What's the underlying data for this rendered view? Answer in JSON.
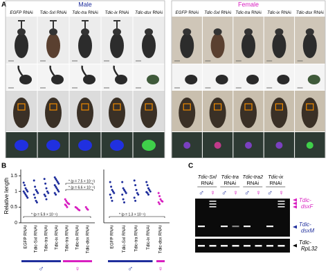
{
  "panel_a": {
    "label": "A",
    "male": {
      "title": "Male",
      "color": "#1f2e9c",
      "columns": [
        {
          "gene": "EGFP",
          "suffix": "RNAi"
        },
        {
          "gene": "Tdic-Sxl",
          "suffix": "RNAi"
        },
        {
          "gene": "Tdic-tra",
          "suffix": "RNAi"
        },
        {
          "gene": "Tdic-ix",
          "suffix": "RNAi"
        },
        {
          "gene": "Tdic-dsx",
          "suffix": "RNAi"
        }
      ]
    },
    "female": {
      "title": "Female",
      "color": "#d81fc0",
      "columns": [
        {
          "gene": "EGFP",
          "suffix": "RNAi"
        },
        {
          "gene": "Tdic-Sxl",
          "suffix": "RNAi"
        },
        {
          "gene": "Tdic-tra",
          "suffix": "RNAi"
        },
        {
          "gene": "Tdic-ix",
          "suffix": "RNAi"
        },
        {
          "gene": "Tdic-dsx",
          "suffix": "RNAi"
        }
      ]
    }
  },
  "panel_b": {
    "label": "B"
  },
  "chart_data": [
    {
      "type": "strip",
      "y_label": "Relative length",
      "ylim": [
        0,
        1.7
      ],
      "yticks": [
        0,
        0.5,
        1,
        1.5
      ],
      "groups": [
        {
          "label": "♂",
          "color": "#1f2e9c",
          "categories": [
            "EGFP RNAi",
            "Tdic-Sxl RNAi",
            "Tdic-tra RNAi",
            "Tdic-ix RNAi"
          ],
          "values": [
            [
              1.28,
              1.2,
              1.1,
              1.05,
              1.0,
              1.0,
              0.95,
              0.9,
              0.85,
              0.8
            ],
            [
              1.35,
              1.15,
              1.05,
              1.0,
              0.95,
              0.9,
              0.8,
              0.7,
              0.65
            ],
            [
              1.4,
              1.25,
              1.1,
              1.0,
              0.95,
              0.9,
              0.85,
              0.75
            ],
            [
              1.45,
              1.4,
              1.35,
              1.3,
              1.25,
              1.2,
              1.15,
              1.1,
              1.05,
              1.0,
              0.95,
              0.9
            ]
          ]
        },
        {
          "label": "♀",
          "color": "#d81fc0",
          "categories": [
            "Tdic-tra RNAi",
            "Tdic-ix RNAi",
            "Tdic-dsx RNAi"
          ],
          "values": [
            [
              0.75,
              0.7,
              0.65,
              0.62,
              0.6,
              0.58,
              0.55,
              0.5
            ],
            [
              0.5,
              0.48,
              0.45,
              0.42,
              0.4
            ],
            [
              0.5,
              0.45,
              0.42
            ]
          ]
        }
      ],
      "annotations": [
        "* (p = 7.5 × 10⁻⁵)",
        "* (p = 6.6 × 10⁻⁴)",
        "* (p = 5.9 × 10⁻⁵)"
      ]
    },
    {
      "type": "strip",
      "ylim": [
        0,
        1.7
      ],
      "groups": [
        {
          "label": "♂",
          "color": "#1f2e9c",
          "categories": [
            "EGFP RNAi",
            "Tdic-Sxl RNAi",
            "Tdic-tra RNAi",
            "Tdic-ix RNAi"
          ],
          "values": [
            [
              1.3,
              1.15,
              1.05,
              1.0,
              0.95,
              0.9,
              0.8,
              0.7
            ],
            [
              1.3,
              1.1,
              1.05,
              1.0,
              0.95,
              0.9,
              0.75,
              0.65
            ],
            [
              1.35,
              1.2,
              1.05,
              0.95,
              0.9,
              0.8,
              0.7
            ],
            [
              1.3,
              1.2,
              1.1,
              1.05,
              1.0,
              0.98,
              0.95,
              0.9
            ]
          ]
        },
        {
          "label": "♀",
          "color": "#d81fc0",
          "categories": [
            "Tdic-dsx RNAi"
          ],
          "values": [
            [
              0.95,
              0.85,
              0.75,
              0.7,
              0.68,
              0.65,
              0.6
            ]
          ]
        }
      ],
      "annotations": [
        "* (p = 1.3 × 10⁻⁵)"
      ]
    }
  ],
  "panel_c": {
    "label": "C",
    "columns": [
      {
        "gene": "Tdic-Sxl",
        "suffix": "RNAi"
      },
      {
        "gene": "Tdic-tra",
        "suffix": "RNAi"
      },
      {
        "gene": "Tdic-tra2",
        "suffix": "RNAi"
      },
      {
        "gene": "Tdic-ix",
        "suffix": "RNAi"
      }
    ],
    "lanes": [
      {
        "label": "♂",
        "color": "#1f2e9c"
      },
      {
        "label": "♀",
        "color": "#d81fc0"
      },
      {
        "label": "♂",
        "color": "#1f2e9c"
      },
      {
        "label": "♀",
        "color": "#d81fc0"
      },
      {
        "label": "♂",
        "color": "#1f2e9c"
      },
      {
        "label": "♀",
        "color": "#d81fc0"
      },
      {
        "label": "♂",
        "color": "#1f2e9c"
      },
      {
        "label": "♀",
        "color": "#d81fc0"
      }
    ],
    "markers": [
      {
        "line1": "Tdic-",
        "line2": "dsxF",
        "color": "#d81fc0"
      },
      {
        "line1": "Tdic-",
        "line2": "dsxM",
        "color": "#1f2e9c"
      },
      {
        "line1": "Tdic-",
        "line2": "RpL32",
        "color": "#000000"
      }
    ]
  }
}
